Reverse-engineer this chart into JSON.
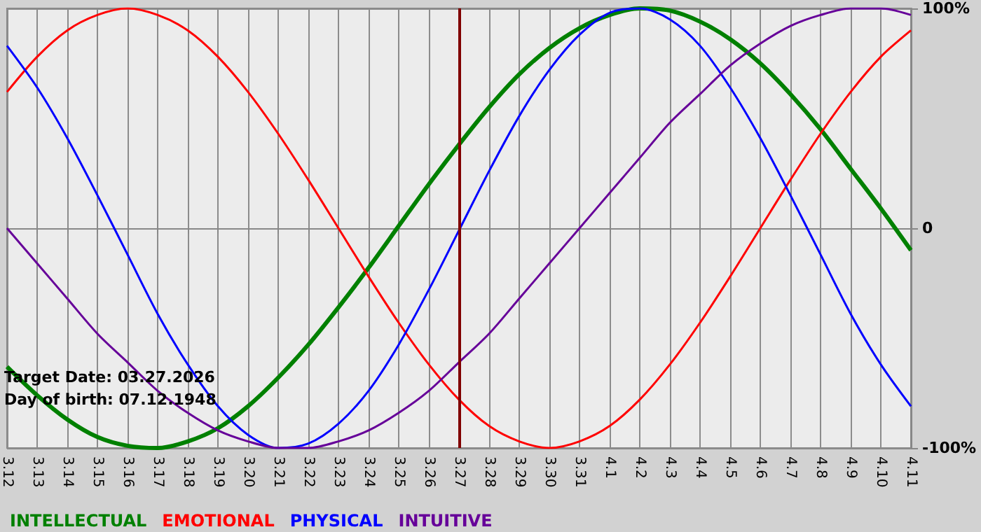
{
  "chart_data": {
    "type": "line",
    "categories": [
      "3.12",
      "3.13",
      "3.14",
      "3.15",
      "3.16",
      "3.17",
      "3.18",
      "3.19",
      "3.20",
      "3.21",
      "3.22",
      "3.23",
      "3.24",
      "3.25",
      "3.26",
      "3.27",
      "3.28",
      "3.29",
      "3.30",
      "3.31",
      "4.1",
      "4.2",
      "4.3",
      "4.4",
      "4.5",
      "4.6",
      "4.7",
      "4.8",
      "4.9",
      "4.10",
      "4.11"
    ],
    "series": [
      {
        "name": "INTELLECTUAL",
        "color": "#008000",
        "values": [
          -63,
          -76,
          -87,
          -95,
          -99,
          -100,
          -97,
          -91,
          -81,
          -68,
          -53,
          -36,
          -18,
          1,
          20,
          38,
          55,
          70,
          82,
          91,
          97,
          100,
          99,
          94,
          86,
          75,
          61,
          45,
          27,
          9,
          -10
        ]
      },
      {
        "name": "EMOTIONAL",
        "color": "#ff0000",
        "values": [
          62,
          78,
          90,
          97,
          100,
          97,
          90,
          78,
          62,
          43,
          22,
          0,
          -22,
          -43,
          -62,
          -78,
          -90,
          -97,
          -100,
          -97,
          -90,
          -78,
          -62,
          -43,
          -22,
          0,
          22,
          43,
          62,
          78,
          90
        ]
      },
      {
        "name": "PHYSICAL",
        "color": "#0000ff",
        "values": [
          83,
          64,
          41,
          15,
          -12,
          -39,
          -62,
          -81,
          -94,
          -100,
          -98,
          -89,
          -74,
          -53,
          -28,
          -1,
          26,
          51,
          72,
          88,
          98,
          100,
          95,
          83,
          64,
          41,
          15,
          -12,
          -39,
          -62,
          -81
        ]
      },
      {
        "name": "INTUITIVE",
        "color": "#660099",
        "values": [
          0,
          -16,
          -32,
          -48,
          -61,
          -74,
          -84,
          -92,
          -97,
          -100,
          -100,
          -97,
          -92,
          -84,
          -74,
          -61,
          -48,
          -32,
          -16,
          0,
          16,
          32,
          48,
          61,
          74,
          84,
          92,
          97,
          100,
          100,
          97
        ]
      }
    ],
    "ylim": [
      -100,
      100
    ],
    "yticks": [
      {
        "value": 100,
        "label": "100%"
      },
      0,
      {
        "value": -100,
        "label": "-100%"
      }
    ],
    "ref_lines": [
      {
        "axis": "x",
        "value": "3.27",
        "color": "#800000"
      }
    ],
    "annotations": [
      "Target Date: 03.27.2026",
      "Day of birth: 07.12.1948"
    ],
    "grid": true,
    "legend": "bottom left",
    "marker": "none"
  }
}
